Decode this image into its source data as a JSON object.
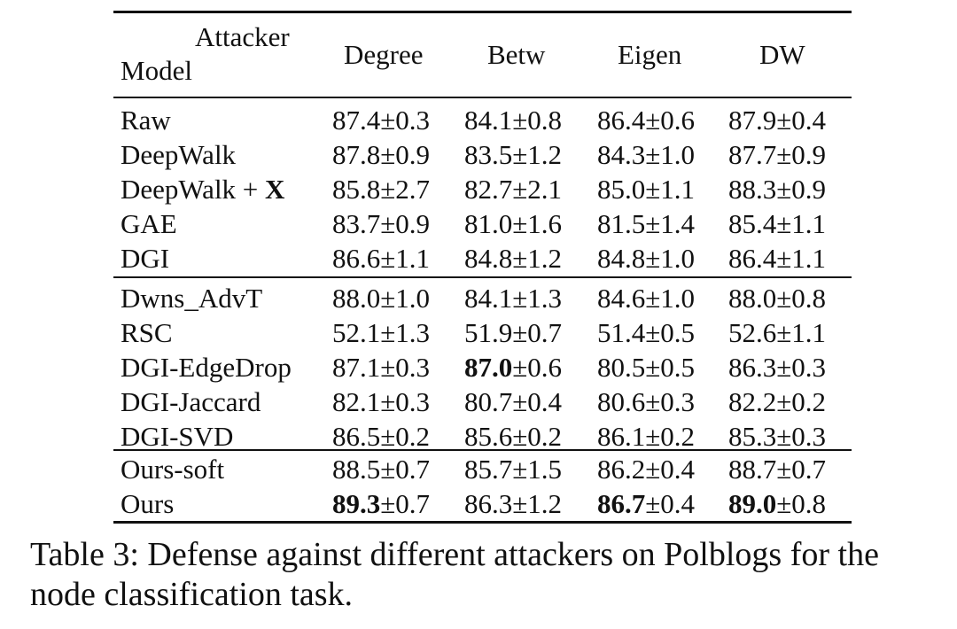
{
  "table": {
    "header": {
      "attacker_label": "Attacker",
      "model_label": "Model",
      "columns": [
        "Degree",
        "Betw",
        "Eigen",
        "DW"
      ]
    },
    "groups": [
      [
        {
          "model": "Raw",
          "model_suffix": "",
          "cells": [
            {
              "main": "87.4",
              "pm": "±0.3",
              "bold": false
            },
            {
              "main": "84.1",
              "pm": "±0.8",
              "bold": false
            },
            {
              "main": "86.4",
              "pm": "±0.6",
              "bold": false
            },
            {
              "main": "87.9",
              "pm": "±0.4",
              "bold": false
            }
          ]
        },
        {
          "model": "DeepWalk",
          "model_suffix": "",
          "cells": [
            {
              "main": "87.8",
              "pm": "±0.9",
              "bold": false
            },
            {
              "main": "83.5",
              "pm": "±1.2",
              "bold": false
            },
            {
              "main": "84.3",
              "pm": "±1.0",
              "bold": false
            },
            {
              "main": "87.7",
              "pm": "±0.9",
              "bold": false
            }
          ]
        },
        {
          "model": "DeepWalk + ",
          "model_suffix": "X",
          "cells": [
            {
              "main": "85.8",
              "pm": "±2.7",
              "bold": false
            },
            {
              "main": "82.7",
              "pm": "±2.1",
              "bold": false
            },
            {
              "main": "85.0",
              "pm": "±1.1",
              "bold": false
            },
            {
              "main": "88.3",
              "pm": "±0.9",
              "bold": false
            }
          ]
        },
        {
          "model": "GAE",
          "model_suffix": "",
          "cells": [
            {
              "main": "83.7",
              "pm": "±0.9",
              "bold": false
            },
            {
              "main": "81.0",
              "pm": "±1.6",
              "bold": false
            },
            {
              "main": "81.5",
              "pm": "±1.4",
              "bold": false
            },
            {
              "main": "85.4",
              "pm": "±1.1",
              "bold": false
            }
          ]
        },
        {
          "model": "DGI",
          "model_suffix": "",
          "cells": [
            {
              "main": "86.6",
              "pm": "±1.1",
              "bold": false
            },
            {
              "main": "84.8",
              "pm": "±1.2",
              "bold": false
            },
            {
              "main": "84.8",
              "pm": "±1.0",
              "bold": false
            },
            {
              "main": "86.4",
              "pm": "±1.1",
              "bold": false
            }
          ]
        }
      ],
      [
        {
          "model": "Dwns_AdvT",
          "model_suffix": "",
          "cells": [
            {
              "main": "88.0",
              "pm": "±1.0",
              "bold": false
            },
            {
              "main": "84.1",
              "pm": "±1.3",
              "bold": false
            },
            {
              "main": "84.6",
              "pm": "±1.0",
              "bold": false
            },
            {
              "main": "88.0",
              "pm": "±0.8",
              "bold": false
            }
          ]
        },
        {
          "model": "RSC",
          "model_suffix": "",
          "cells": [
            {
              "main": "52.1",
              "pm": "±1.3",
              "bold": false
            },
            {
              "main": "51.9",
              "pm": "±0.7",
              "bold": false
            },
            {
              "main": "51.4",
              "pm": "±0.5",
              "bold": false
            },
            {
              "main": "52.6",
              "pm": "±1.1",
              "bold": false
            }
          ]
        },
        {
          "model": "DGI-EdgeDrop",
          "model_suffix": "",
          "cells": [
            {
              "main": "87.1",
              "pm": "±0.3",
              "bold": false
            },
            {
              "main": "87.0",
              "pm": "±0.6",
              "bold": true
            },
            {
              "main": "80.5",
              "pm": "±0.5",
              "bold": false
            },
            {
              "main": "86.3",
              "pm": "±0.3",
              "bold": false
            }
          ]
        },
        {
          "model": "DGI-Jaccard",
          "model_suffix": "",
          "cells": [
            {
              "main": "82.1",
              "pm": "±0.3",
              "bold": false
            },
            {
              "main": "80.7",
              "pm": "±0.4",
              "bold": false
            },
            {
              "main": "80.6",
              "pm": "±0.3",
              "bold": false
            },
            {
              "main": "82.2",
              "pm": "±0.2",
              "bold": false
            }
          ]
        },
        {
          "model": "DGI-SVD",
          "model_suffix": "",
          "cells": [
            {
              "main": "86.5",
              "pm": "±0.2",
              "bold": false
            },
            {
              "main": "85.6",
              "pm": "±0.2",
              "bold": false
            },
            {
              "main": "86.1",
              "pm": "±0.2",
              "bold": false
            },
            {
              "main": "85.3",
              "pm": "±0.3",
              "bold": false
            }
          ]
        }
      ],
      [
        {
          "model": "Ours-soft",
          "model_suffix": "",
          "cells": [
            {
              "main": "88.5",
              "pm": "±0.7",
              "bold": false
            },
            {
              "main": "85.7",
              "pm": "±1.5",
              "bold": false
            },
            {
              "main": "86.2",
              "pm": "±0.4",
              "bold": false
            },
            {
              "main": "88.7",
              "pm": "±0.7",
              "bold": false
            }
          ]
        },
        {
          "model": "Ours",
          "model_suffix": "",
          "cells": [
            {
              "main": "89.3",
              "pm": "±0.7",
              "bold": true
            },
            {
              "main": "86.3",
              "pm": "±1.2",
              "bold": false
            },
            {
              "main": "86.7",
              "pm": "±0.4",
              "bold": true
            },
            {
              "main": "89.0",
              "pm": "±0.8",
              "bold": true
            }
          ]
        }
      ]
    ]
  },
  "caption": "Table 3: Defense against different attackers on Polblogs for the node classification task."
}
